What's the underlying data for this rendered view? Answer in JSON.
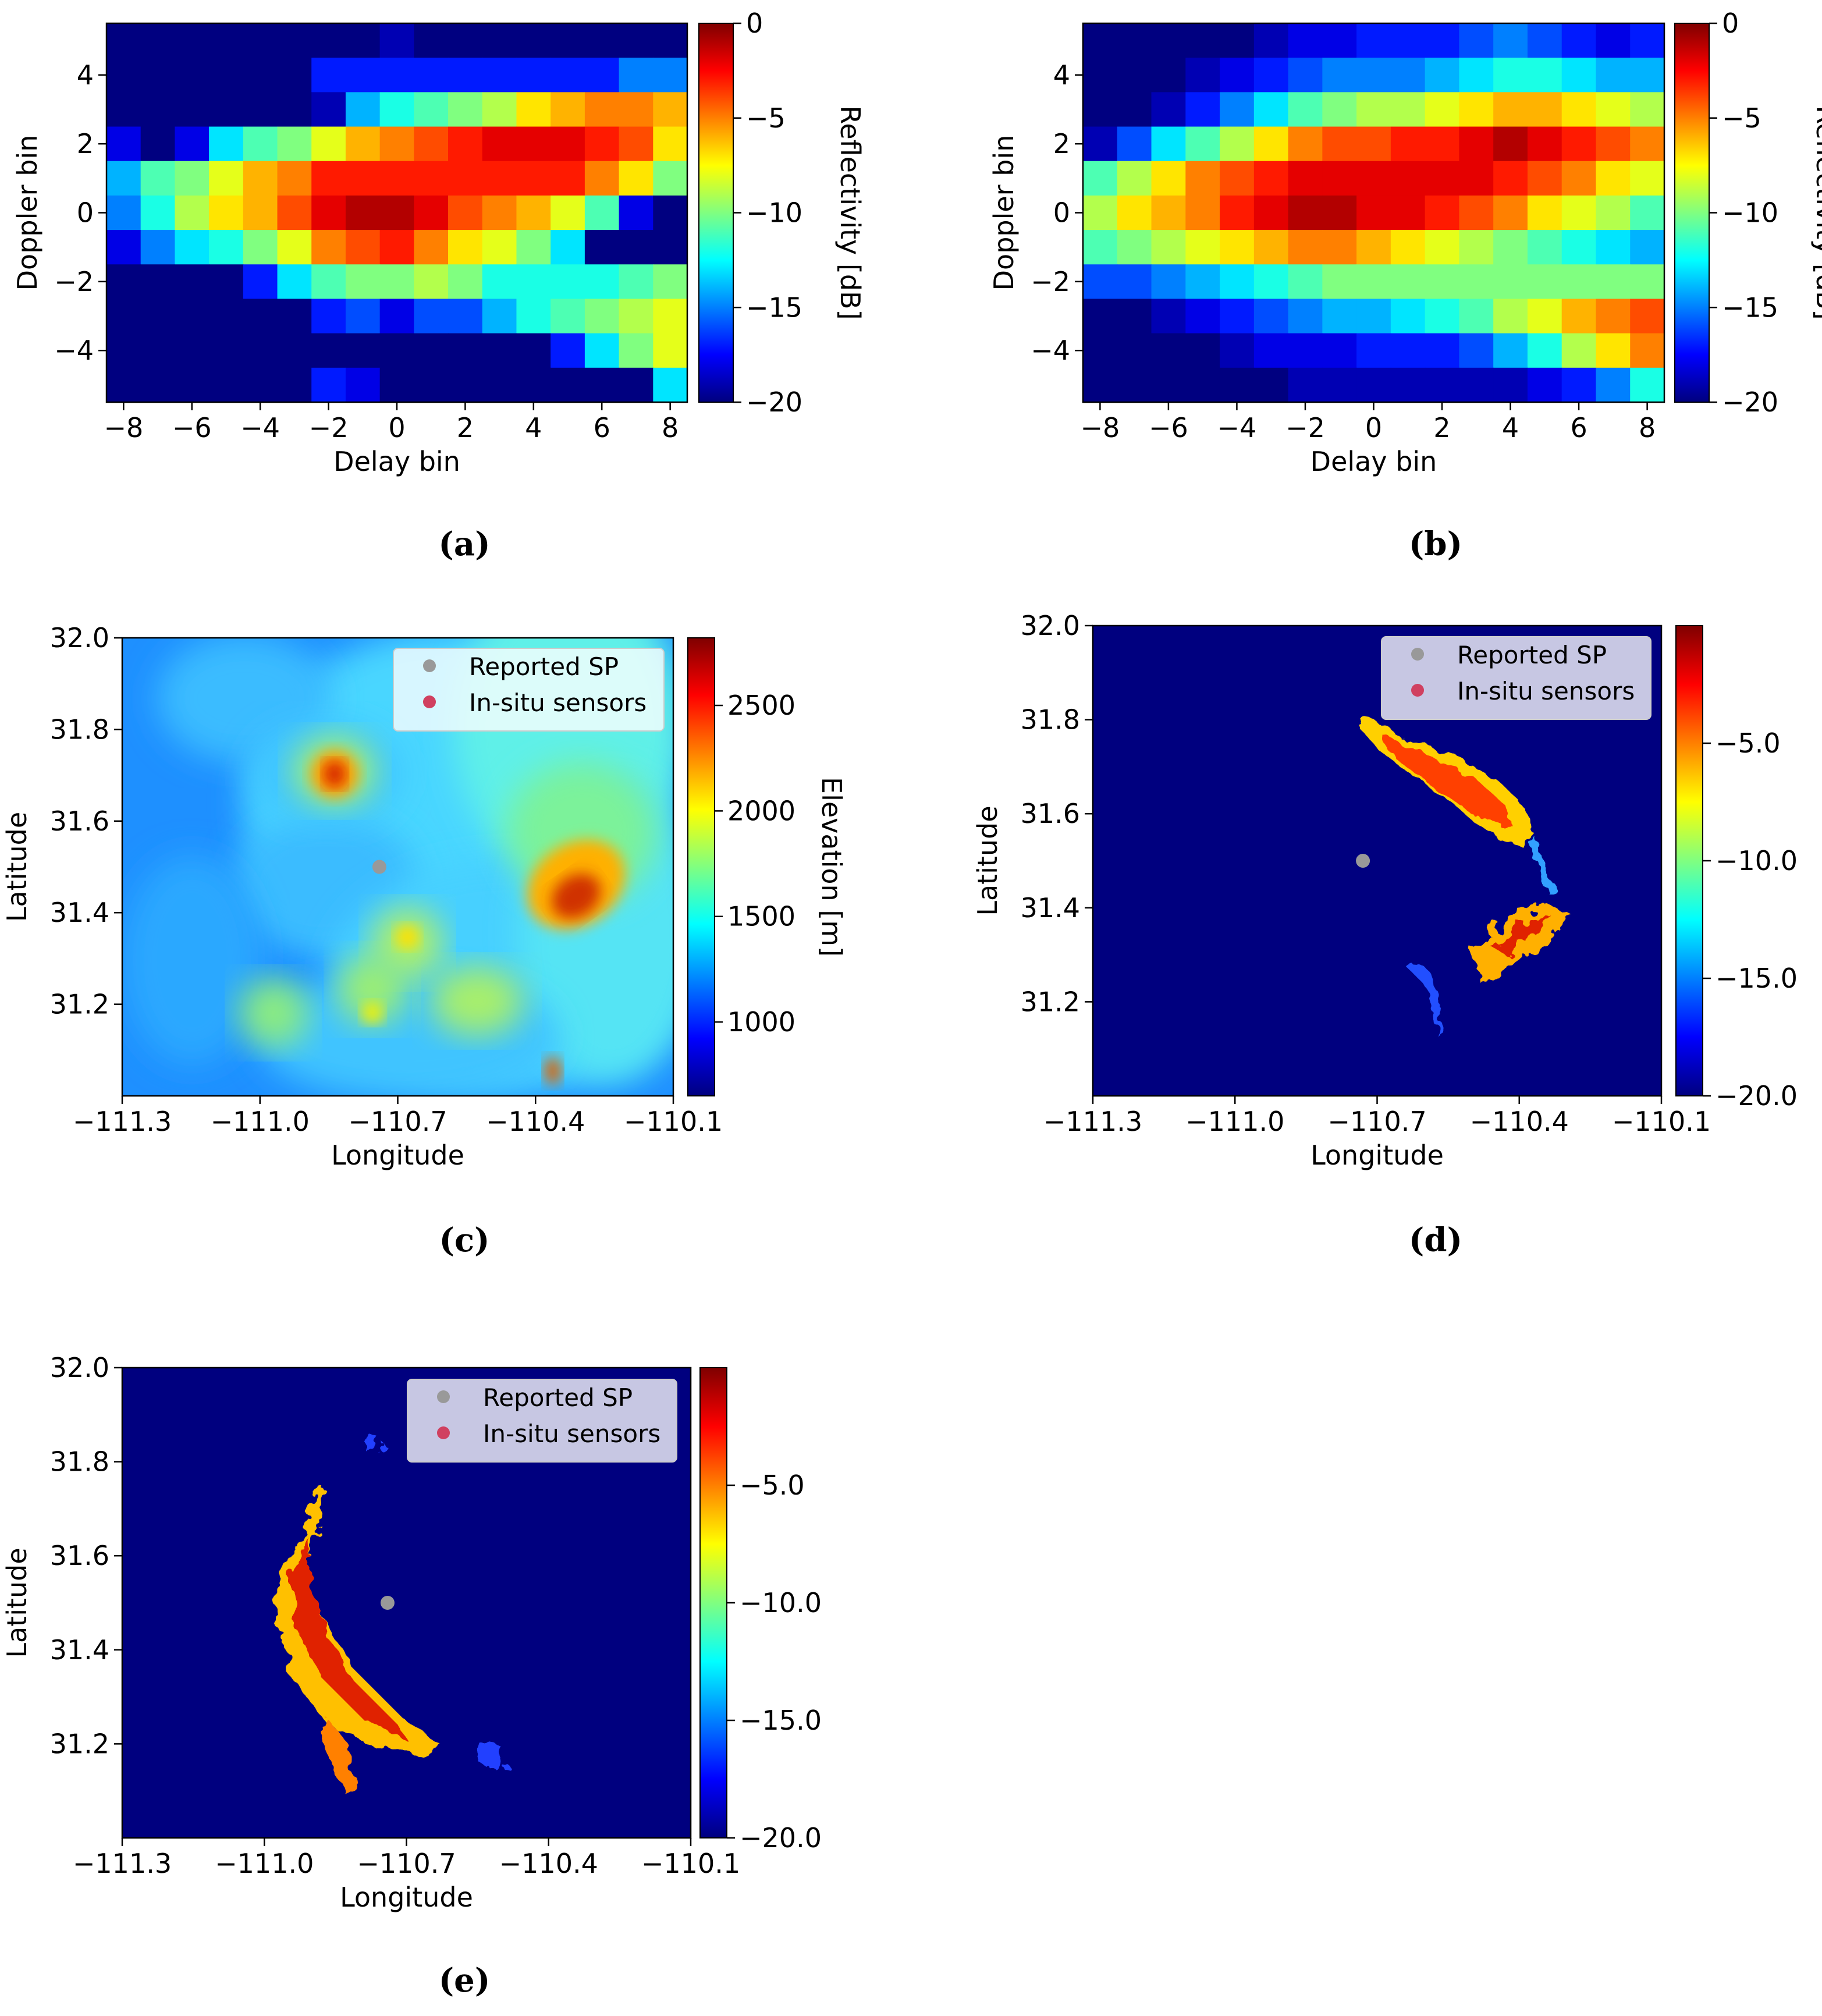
{
  "figure": {
    "captions": [
      "(a)",
      "(b)",
      "(c)",
      "(d)",
      "(e)"
    ]
  },
  "colormap": "jet",
  "chart_data": [
    {
      "id": "a",
      "type": "heatmap",
      "xlabel": "Delay bin",
      "ylabel": "Doppler bin",
      "x_ticks": [
        -8,
        -6,
        -4,
        -2,
        0,
        2,
        4,
        6,
        8
      ],
      "y_ticks": [
        -4,
        -2,
        0,
        2,
        4
      ],
      "xlim": [
        -8.5,
        8.5
      ],
      "ylim": [
        -5.5,
        5.5
      ],
      "x_bins": [
        -8,
        -7,
        -6,
        -5,
        -4,
        -3,
        -2,
        -1,
        0,
        1,
        2,
        3,
        4,
        5,
        6,
        7,
        8
      ],
      "y_bins": [
        5,
        4,
        3,
        2,
        1,
        0,
        -1,
        -2,
        -3,
        -4,
        -5
      ],
      "colorbar": {
        "label": "Reflectivity [dB]",
        "range": [
          -20,
          0
        ],
        "ticks": [
          0,
          -5,
          -10,
          -15,
          -20
        ]
      },
      "grid_db": [
        [
          -20,
          -20,
          -20,
          -20,
          -20,
          -20,
          -20,
          -20,
          -19,
          -20,
          -20,
          -20,
          -20,
          -20,
          -20,
          -20,
          -20
        ],
        [
          -20,
          -20,
          -20,
          -20,
          -20,
          -20,
          -17,
          -17,
          -17,
          -17,
          -17,
          -17,
          -17,
          -17,
          -17,
          -15,
          -15
        ],
        [
          -20,
          -20,
          -20,
          -20,
          -20,
          -20,
          -19,
          -14,
          -12,
          -11,
          -10,
          -9,
          -7,
          -6,
          -5,
          -5,
          -6
        ],
        [
          -18,
          -20,
          -18,
          -13,
          -11,
          -10,
          -8,
          -6,
          -5,
          -4,
          -3,
          -2,
          -2,
          -2,
          -3,
          -4,
          -7
        ],
        [
          -14,
          -11,
          -10,
          -8,
          -6,
          -5,
          -3,
          -3,
          -3,
          -3,
          -3,
          -3,
          -3,
          -3,
          -5,
          -7,
          -10
        ],
        [
          -15,
          -12,
          -9,
          -7,
          -6,
          -4,
          -2,
          -1,
          -1,
          -2,
          -4,
          -5,
          -6,
          -8,
          -11,
          -18,
          -20
        ],
        [
          -18,
          -15,
          -13,
          -12,
          -10,
          -8,
          -5,
          -4,
          -3,
          -5,
          -7,
          -8,
          -10,
          -13,
          -20,
          -20,
          -20
        ],
        [
          -20,
          -20,
          -20,
          -20,
          -17,
          -13,
          -11,
          -10,
          -10,
          -9,
          -10,
          -12,
          -12,
          -12,
          -12,
          -11,
          -10
        ],
        [
          -20,
          -20,
          -20,
          -20,
          -20,
          -20,
          -17,
          -16,
          -18,
          -16,
          -16,
          -14,
          -12,
          -11,
          -10,
          -9,
          -8
        ],
        [
          -20,
          -20,
          -20,
          -20,
          -20,
          -20,
          -20,
          -20,
          -20,
          -20,
          -20,
          -20,
          -20,
          -17,
          -13,
          -10,
          -8
        ],
        [
          -20,
          -20,
          -20,
          -20,
          -20,
          -20,
          -17,
          -18,
          -20,
          -20,
          -20,
          -20,
          -20,
          -20,
          -20,
          -20,
          -13
        ]
      ]
    },
    {
      "id": "b",
      "type": "heatmap",
      "xlabel": "Delay bin",
      "ylabel": "Doppler bin",
      "x_ticks": [
        -8,
        -6,
        -4,
        -2,
        0,
        2,
        4,
        6,
        8
      ],
      "y_ticks": [
        -4,
        -2,
        0,
        2,
        4
      ],
      "xlim": [
        -8.5,
        8.5
      ],
      "ylim": [
        -5.5,
        5.5
      ],
      "x_bins": [
        -8,
        -7,
        -6,
        -5,
        -4,
        -3,
        -2,
        -1,
        0,
        1,
        2,
        3,
        4,
        5,
        6,
        7,
        8
      ],
      "y_bins": [
        5,
        4,
        3,
        2,
        1,
        0,
        -1,
        -2,
        -3,
        -4,
        -5
      ],
      "colorbar": {
        "label": "Reflectivity [dB]",
        "range": [
          -20,
          0
        ],
        "ticks": [
          0,
          -5,
          -10,
          -15,
          -20
        ]
      },
      "grid_db": [
        [
          -20,
          -20,
          -20,
          -20,
          -20,
          -19,
          -18,
          -18,
          -17,
          -17,
          -17,
          -16,
          -15,
          -16,
          -17,
          -18,
          -17
        ],
        [
          -20,
          -20,
          -20,
          -19,
          -18,
          -17,
          -16,
          -15,
          -15,
          -15,
          -14,
          -13,
          -12,
          -12,
          -13,
          -14,
          -14
        ],
        [
          -20,
          -20,
          -19,
          -17,
          -15,
          -13,
          -11,
          -10,
          -9,
          -9,
          -8,
          -7,
          -6,
          -6,
          -7,
          -8,
          -9
        ],
        [
          -19,
          -16,
          -13,
          -11,
          -9,
          -7,
          -5,
          -4,
          -4,
          -3,
          -3,
          -2,
          -1,
          -2,
          -3,
          -4,
          -5
        ],
        [
          -11,
          -9,
          -7,
          -5,
          -4,
          -3,
          -2,
          -2,
          -2,
          -2,
          -2,
          -2,
          -3,
          -4,
          -5,
          -7,
          -8
        ],
        [
          -9,
          -7,
          -6,
          -5,
          -3,
          -2,
          -1,
          -1,
          -2,
          -2,
          -3,
          -4,
          -5,
          -7,
          -8,
          -9,
          -11
        ],
        [
          -11,
          -10,
          -9,
          -8,
          -7,
          -6,
          -5,
          -5,
          -6,
          -7,
          -8,
          -9,
          -10,
          -11,
          -12,
          -13,
          -14
        ],
        [
          -16,
          -16,
          -15,
          -14,
          -13,
          -12,
          -11,
          -10,
          -10,
          -10,
          -10,
          -10,
          -10,
          -10,
          -10,
          -10,
          -10
        ],
        [
          -20,
          -20,
          -19,
          -18,
          -17,
          -16,
          -15,
          -14,
          -14,
          -13,
          -12,
          -11,
          -9,
          -8,
          -6,
          -5,
          -4
        ],
        [
          -20,
          -20,
          -20,
          -20,
          -19,
          -18,
          -18,
          -18,
          -17,
          -17,
          -17,
          -16,
          -14,
          -12,
          -9,
          -7,
          -5
        ],
        [
          -20,
          -20,
          -20,
          -20,
          -20,
          -20,
          -19,
          -19,
          -19,
          -19,
          -19,
          -19,
          -19,
          -18,
          -17,
          -15,
          -12
        ]
      ]
    },
    {
      "id": "c",
      "type": "heatmap",
      "xlabel": "Longitude",
      "ylabel": "Latitude",
      "x_ticks": [
        "−111.3",
        "−111.0",
        "−110.7",
        "−110.4",
        "−110.1"
      ],
      "x_tick_values": [
        -111.3,
        -111.0,
        -110.7,
        -110.4,
        -110.1
      ],
      "y_ticks": [
        "32.0",
        "31.8",
        "31.6",
        "31.4",
        "31.2"
      ],
      "y_tick_values": [
        32.0,
        31.8,
        31.6,
        31.4,
        31.2
      ],
      "xlim": [
        -111.3,
        -110.1
      ],
      "ylim": [
        31.0,
        32.0
      ],
      "colorbar": {
        "label": "Elevation [m]",
        "range": [
          650,
          2820
        ],
        "ticks": [
          2500,
          2000,
          1500,
          1000
        ]
      },
      "legend": {
        "loc": "upper right",
        "entries": [
          {
            "label": "Reported SP",
            "color": "#999999"
          },
          {
            "label": "In-situ sensors",
            "color": "#d04060"
          }
        ]
      },
      "reported_sp": [
        -110.74,
        31.5
      ],
      "high_terrain_lonlat": [
        [
          -110.83,
          31.7
        ],
        [
          -110.31,
          31.43
        ],
        [
          -110.36,
          31.06
        ],
        [
          -110.78,
          31.27
        ],
        [
          -110.52,
          31.17
        ]
      ]
    },
    {
      "id": "d",
      "type": "heatmap",
      "xlabel": "Longitude",
      "ylabel": "Latitude",
      "x_ticks": [
        "−111.3",
        "−111.0",
        "−110.7",
        "−110.4",
        "−110.1"
      ],
      "x_tick_values": [
        -111.3,
        -111.0,
        -110.7,
        -110.4,
        -110.1
      ],
      "y_ticks": [
        "32.0",
        "31.8",
        "31.6",
        "31.4",
        "31.2"
      ],
      "y_tick_values": [
        32.0,
        31.8,
        31.6,
        31.4,
        31.2
      ],
      "xlim": [
        -111.3,
        -110.1
      ],
      "ylim": [
        31.0,
        32.0
      ],
      "colorbar": {
        "label": "",
        "range": [
          -20,
          0
        ],
        "ticks": [
          "−5.0",
          "−10.0",
          "−15.0",
          "−20.0"
        ],
        "tick_values": [
          -5,
          -10,
          -15,
          -20
        ]
      },
      "legend": {
        "loc": "upper right",
        "entries": [
          {
            "label": "Reported SP",
            "color": "#999999"
          },
          {
            "label": "In-situ sensors",
            "color": "#d04060"
          }
        ]
      },
      "reported_sp": [
        -110.73,
        31.5
      ]
    },
    {
      "id": "e",
      "type": "heatmap",
      "xlabel": "Longitude",
      "ylabel": "Latitude",
      "x_ticks": [
        "−111.3",
        "−111.0",
        "−110.7",
        "−110.4",
        "−110.1"
      ],
      "x_tick_values": [
        -111.3,
        -111.0,
        -110.7,
        -110.4,
        -110.1
      ],
      "y_ticks": [
        "32.0",
        "31.8",
        "31.6",
        "31.4",
        "31.2"
      ],
      "y_tick_values": [
        32.0,
        31.8,
        31.6,
        31.4,
        31.2
      ],
      "xlim": [
        -111.3,
        -110.1
      ],
      "ylim": [
        31.0,
        32.0
      ],
      "colorbar": {
        "label": "",
        "range": [
          -20,
          0
        ],
        "ticks": [
          "−5.0",
          "−10.0",
          "−15.0",
          "−20.0"
        ],
        "tick_values": [
          -5,
          -10,
          -15,
          -20
        ]
      },
      "legend": {
        "loc": "upper right",
        "entries": [
          {
            "label": "Reported SP",
            "color": "#999999"
          },
          {
            "label": "In-situ sensors",
            "color": "#d04060"
          }
        ]
      },
      "reported_sp": [
        -110.74,
        31.5
      ]
    }
  ]
}
